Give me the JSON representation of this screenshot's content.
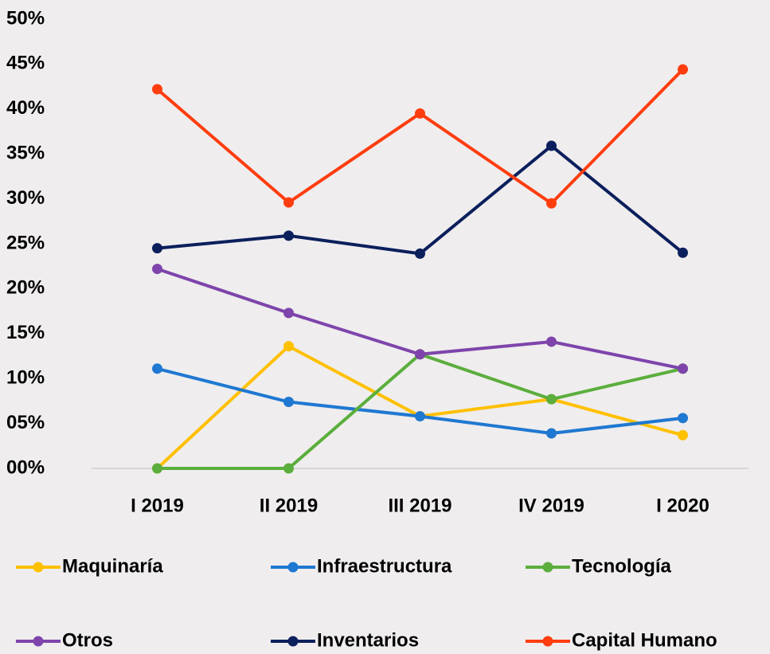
{
  "chart_data": {
    "type": "line",
    "categories": [
      "I 2019",
      "II 2019",
      "III 2019",
      "IV 2019",
      "I 2020"
    ],
    "series": [
      {
        "name": "Maquinaría",
        "color": "#FFC000",
        "values": [
          0,
          13.6,
          5.8,
          7.7,
          3.7
        ]
      },
      {
        "name": "Infraestructura",
        "color": "#1F78D1",
        "values": [
          11.1,
          7.4,
          5.8,
          3.9,
          5.6
        ]
      },
      {
        "name": "Tecnología",
        "color": "#5BAE3C",
        "values": [
          0,
          0,
          12.7,
          7.7,
          11.1
        ]
      },
      {
        "name": "Otros",
        "color": "#7E44AB",
        "values": [
          22.2,
          17.3,
          12.7,
          14.1,
          11.1
        ]
      },
      {
        "name": "Inventarios",
        "color": "#0B1F5C",
        "values": [
          24.5,
          25.9,
          23.9,
          35.9,
          24.0
        ]
      },
      {
        "name": "Capital Humano",
        "color": "#FF3D0F",
        "values": [
          42.2,
          29.6,
          39.5,
          29.5,
          44.4
        ]
      }
    ],
    "ylim": [
      0,
      50
    ],
    "yticks": [
      {
        "value": 0,
        "label": "00%"
      },
      {
        "value": 5,
        "label": "05%"
      },
      {
        "value": 10,
        "label": "10%"
      },
      {
        "value": 15,
        "label": "15%"
      },
      {
        "value": 20,
        "label": "20%"
      },
      {
        "value": 25,
        "label": "25%"
      },
      {
        "value": 30,
        "label": "30%"
      },
      {
        "value": 35,
        "label": "35%"
      },
      {
        "value": 40,
        "label": "40%"
      },
      {
        "value": 45,
        "label": "45%"
      },
      {
        "value": 50,
        "label": "50%"
      }
    ],
    "grid": false,
    "legend": "bottom"
  }
}
